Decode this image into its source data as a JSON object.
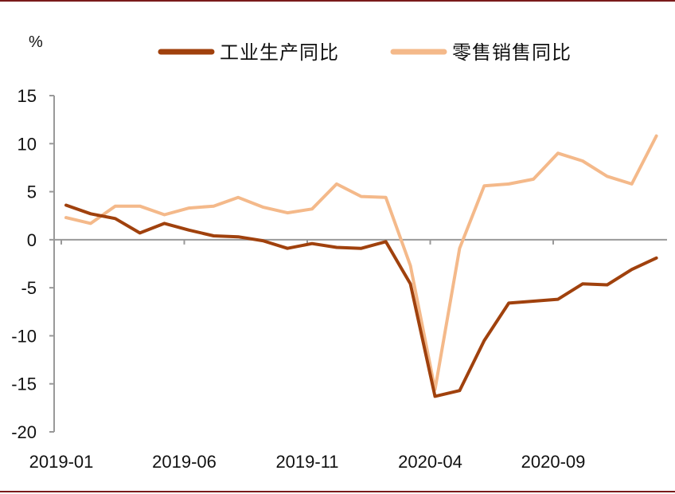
{
  "chart_data": {
    "type": "line",
    "title": "",
    "ylabel": "%",
    "xlabel": "",
    "ylim": [
      -20,
      15
    ],
    "yticks": [
      15,
      10,
      5,
      0,
      -5,
      -10,
      -15,
      -20
    ],
    "xtick_labels": [
      {
        "index": 0,
        "label": "2019-01"
      },
      {
        "index": 5,
        "label": "2019-06"
      },
      {
        "index": 10,
        "label": "2019-11"
      },
      {
        "index": 15,
        "label": "2020-04"
      },
      {
        "index": 20,
        "label": "2020-09"
      }
    ],
    "x": [
      "2019-01",
      "2019-02",
      "2019-03",
      "2019-04",
      "2019-05",
      "2019-06",
      "2019-07",
      "2019-08",
      "2019-09",
      "2019-10",
      "2019-11",
      "2019-12",
      "2020-01",
      "2020-02",
      "2020-03",
      "2020-04",
      "2020-05",
      "2020-06",
      "2020-07",
      "2020-08",
      "2020-09",
      "2020-10",
      "2020-11",
      "2020-12",
      "2021-01"
    ],
    "series": [
      {
        "name": "工业生产同比",
        "color": "#a0410d",
        "values": [
          3.6,
          2.7,
          2.2,
          0.7,
          1.7,
          1.0,
          0.4,
          0.3,
          -0.1,
          -0.9,
          -0.4,
          -0.8,
          -0.9,
          -0.2,
          -4.6,
          -16.3,
          -15.7,
          -10.5,
          -6.6,
          -6.4,
          -6.2,
          -4.6,
          -4.7,
          -3.1,
          -1.9
        ]
      },
      {
        "name": "零售销售同比",
        "color": "#f4b98a",
        "values": [
          2.3,
          1.7,
          3.5,
          3.5,
          2.6,
          3.3,
          3.5,
          4.4,
          3.4,
          2.8,
          3.2,
          5.8,
          4.5,
          4.4,
          -2.7,
          -15.6,
          -0.9,
          5.6,
          5.8,
          6.3,
          9.0,
          8.2,
          6.6,
          5.8,
          10.8
        ]
      }
    ],
    "legend": "top",
    "grid": false
  }
}
